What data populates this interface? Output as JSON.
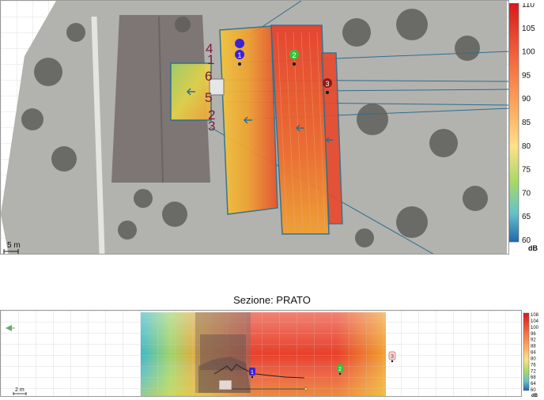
{
  "top_view": {
    "scale_label": "5 m",
    "colorbar": {
      "unit": "dB",
      "ticks": [
        "110",
        "105",
        "100",
        "95",
        "90",
        "85",
        "80",
        "75",
        "70",
        "65",
        "60"
      ]
    },
    "receivers": [
      {
        "label": "1",
        "color": "#3a22d6"
      },
      {
        "label": "2",
        "color": "#33c23a"
      },
      {
        "label": "3",
        "color": "#8a1a1a"
      }
    ],
    "area_labels": [
      "4",
      "1",
      "6",
      "5",
      "2",
      "3"
    ]
  },
  "section": {
    "title": "Sezione: PRATO",
    "scale_label": "2 m",
    "colorbar": {
      "unit": "dB",
      "ticks": [
        "108",
        "104",
        "100",
        "96",
        "92",
        "88",
        "84",
        "80",
        "76",
        "72",
        "68",
        "64",
        "60"
      ]
    },
    "receivers": [
      {
        "label": "1",
        "color": "#3a22d6"
      },
      {
        "label": "2",
        "color": "#33c23a"
      },
      {
        "label": "3",
        "color": "#c86a6a"
      }
    ]
  },
  "colors": {
    "accent_line": "#2f6f8c",
    "hot": "#e8402a",
    "warm": "#f0a030",
    "cool": "#3fb8c8"
  }
}
